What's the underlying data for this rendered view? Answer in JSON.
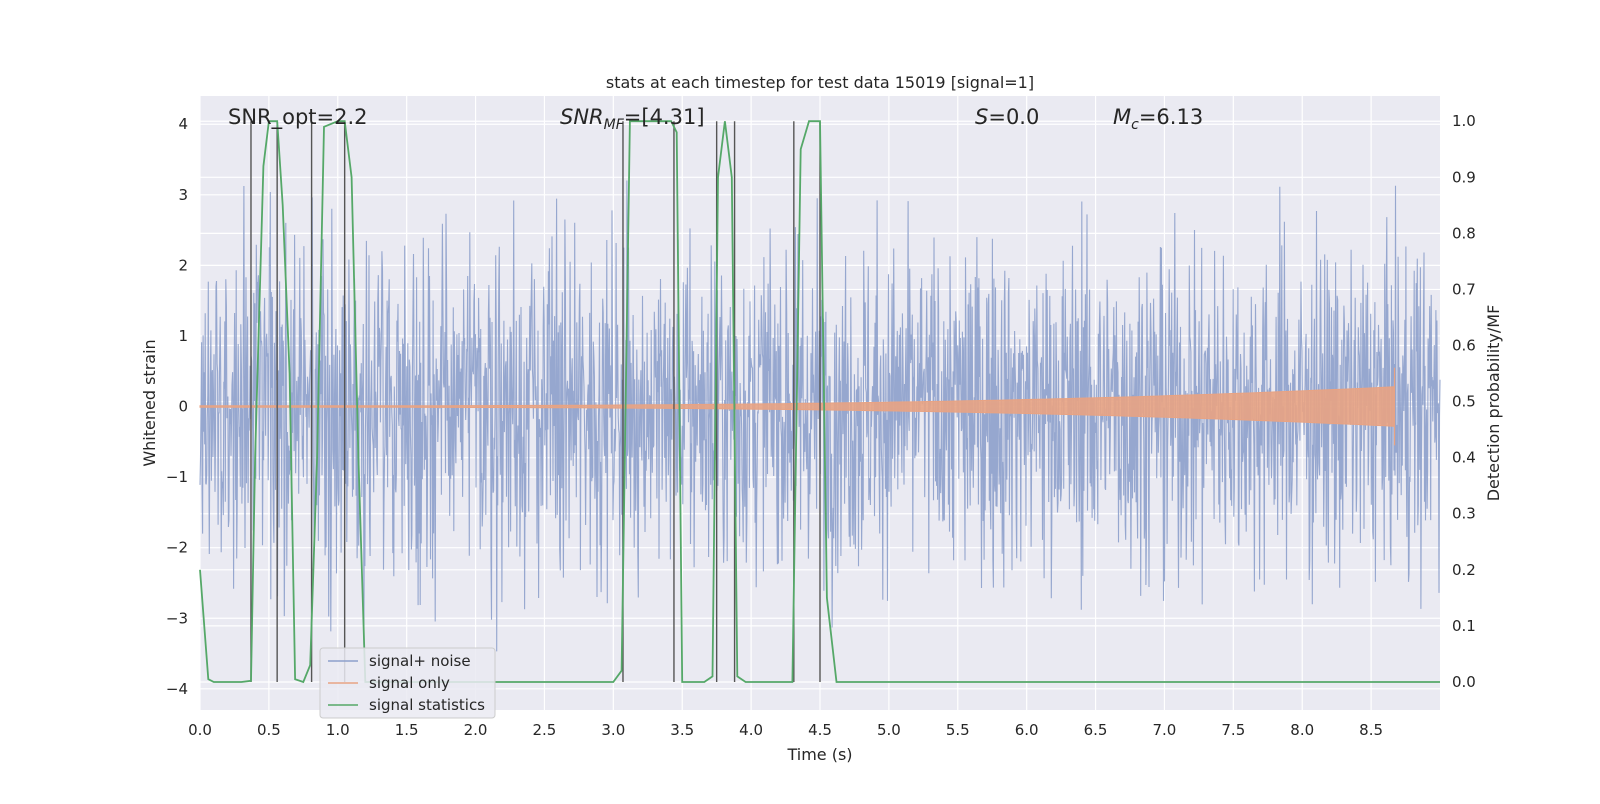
{
  "chart_data": {
    "type": "line",
    "title": "stats at each timestep for test data 15019 [signal=1]",
    "xlabel": "Time (s)",
    "ylabel_left": "Whitened strain",
    "ylabel_right": "Detection probability/MF",
    "xlim": [
      0,
      9.0
    ],
    "ylim_left": [
      -4.3,
      4.4
    ],
    "ylim_right": [
      -0.05,
      1.045
    ],
    "grid": true,
    "legend_placement": "lower-left",
    "x_ticks": [
      "0.0",
      "0.5",
      "1.0",
      "1.5",
      "2.0",
      "2.5",
      "3.0",
      "3.5",
      "4.0",
      "4.5",
      "5.0",
      "5.5",
      "6.0",
      "6.5",
      "7.0",
      "7.5",
      "8.0",
      "8.5"
    ],
    "y_ticks_left": [
      "4",
      "3",
      "2",
      "1",
      "0",
      "−1",
      "−2",
      "−3",
      "−4"
    ],
    "y_ticks_right": [
      "1.0",
      "0.9",
      "0.8",
      "0.7",
      "0.6",
      "0.5",
      "0.4",
      "0.3",
      "0.2",
      "0.1",
      "0.0"
    ],
    "annotations": {
      "snr_opt": "SNR_opt=2.2",
      "snr_mf_main": "SNR",
      "snr_mf_sub": "MF",
      "snr_mf_value": "=[4.31]",
      "s_symbol": "S",
      "s_value": "=0.0",
      "mc_main": "M",
      "mc_sub": "c",
      "mc_value": "=6.13"
    },
    "legend": [
      "signal+ noise",
      "signal only",
      "signal statistics"
    ],
    "series": [
      {
        "name": "signal+ noise",
        "color": "#8da0cb",
        "description_stats": {
          "x_start": 0.0,
          "x_end": 9.0,
          "mean": 0.0,
          "std": 1.0,
          "min": -4.0,
          "max": 3.95
        }
      },
      {
        "name": "signal only",
        "color": "#e8a383",
        "chirp": {
          "x_start": 0.0,
          "x_end": 8.67,
          "amp_start": 0.01,
          "amp_end": 0.28
        }
      },
      {
        "name": "signal statistics",
        "color": "#55a868",
        "x": [
          0.0,
          0.06,
          0.1,
          0.16,
          0.3,
          0.37,
          0.4,
          0.46,
          0.5,
          0.56,
          0.6,
          0.65,
          0.69,
          0.75,
          0.8,
          0.85,
          0.9,
          1.0,
          1.05,
          1.1,
          1.15,
          1.2,
          1.25,
          3.0,
          3.06,
          3.12,
          3.2,
          3.42,
          3.46,
          3.5,
          3.58,
          3.66,
          3.72,
          3.76,
          3.81,
          3.86,
          3.9,
          3.96,
          4.0,
          4.3,
          4.36,
          4.42,
          4.5,
          4.55,
          4.62,
          9.0
        ],
        "values": [
          0.2,
          0.005,
          0.0,
          0.0,
          0.0,
          0.002,
          0.4,
          0.92,
          1.0,
          1.0,
          0.85,
          0.55,
          0.005,
          0.0,
          0.03,
          0.4,
          0.99,
          1.0,
          1.0,
          0.9,
          0.4,
          0.0,
          0.0,
          0.0,
          0.02,
          1.0,
          1.0,
          1.0,
          0.98,
          0.0,
          0.0,
          0.0,
          0.01,
          0.9,
          1.0,
          0.9,
          0.01,
          0.0,
          0.0,
          0.0,
          0.95,
          1.0,
          1.0,
          0.15,
          0.0,
          0.0
        ]
      }
    ],
    "vertical_lines_x": [
      0.37,
      0.56,
      0.81,
      1.05,
      3.07,
      3.44,
      3.75,
      3.88,
      4.31,
      4.5
    ]
  }
}
